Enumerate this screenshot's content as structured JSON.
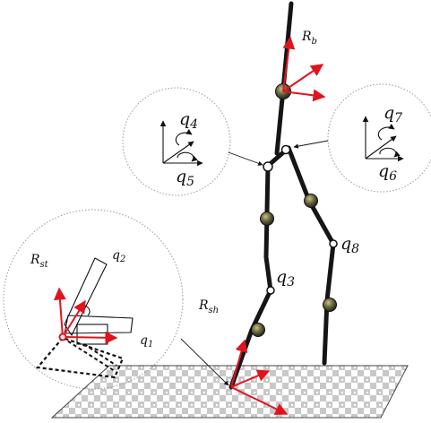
{
  "labels": {
    "r_b": {
      "main": "R",
      "sub": "b"
    },
    "r_st": {
      "main": "R",
      "sub": "st"
    },
    "r_sh": {
      "main": "R",
      "sub": "sh"
    },
    "q1": {
      "main": "q",
      "sub": "1"
    },
    "q2": {
      "main": "q",
      "sub": "2"
    },
    "q3": {
      "main": "q",
      "sub": "3"
    },
    "q4": {
      "main": "q",
      "sub": "4"
    },
    "q5": {
      "main": "q",
      "sub": "5"
    },
    "q6": {
      "main": "q",
      "sub": "6"
    },
    "q7": {
      "main": "q",
      "sub": "7"
    },
    "q8": {
      "main": "q",
      "sub": "8"
    }
  },
  "colors": {
    "frame_arrow": "#e0141e",
    "leg_stroke": "#151515",
    "motor": "#5a5a3a",
    "floor_gray": "#c8c8c8",
    "zoom_circle": "#999999"
  }
}
